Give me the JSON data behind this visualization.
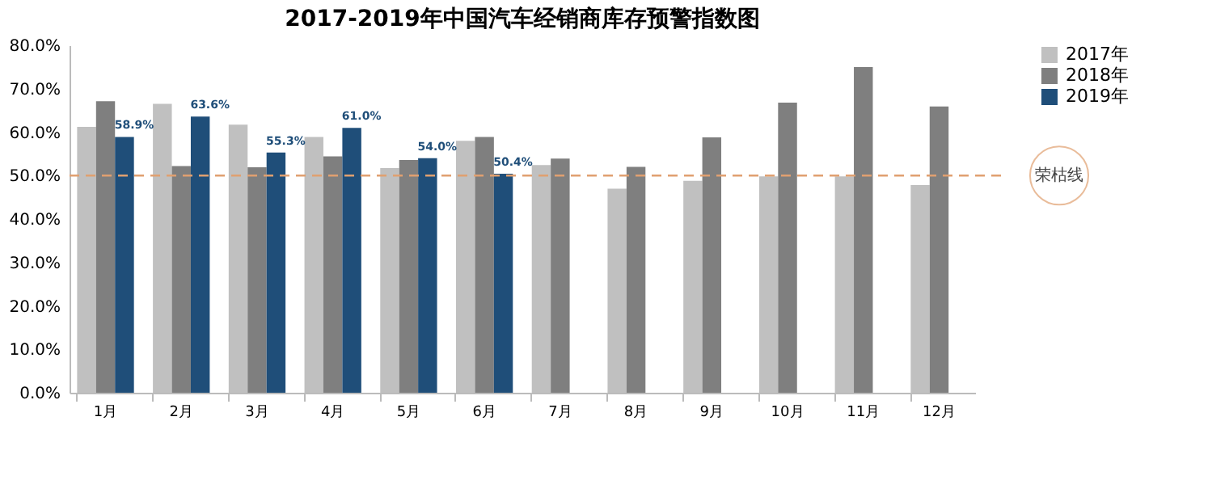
{
  "chart_data": {
    "type": "bar",
    "title": "2017-2019年中国汽车经销商库存预警指数图",
    "categories": [
      "1月",
      "2月",
      "3月",
      "4月",
      "5月",
      "6月",
      "7月",
      "8月",
      "9月",
      "10月",
      "11月",
      "12月"
    ],
    "series": [
      {
        "name": "2017年",
        "color": "#c0c0c0",
        "values": [
          61.2,
          66.5,
          61.7,
          58.9,
          51.7,
          58.0,
          52.4,
          47.0,
          48.8,
          49.8,
          49.8,
          47.8
        ]
      },
      {
        "name": "2018年",
        "color": "#7f7f7f",
        "values": [
          67.1,
          52.2,
          51.9,
          54.4,
          53.6,
          58.9,
          53.9,
          52.0,
          58.8,
          66.8,
          75.0,
          65.9
        ]
      },
      {
        "name": "2019年",
        "color": "#1f4e79",
        "values": [
          58.9,
          63.6,
          55.3,
          61.0,
          54.0,
          50.4,
          null,
          null,
          null,
          null,
          null,
          null
        ],
        "value_labels": [
          "58.9%",
          "63.6%",
          "55.3%",
          "61.0%",
          "54.0%",
          "50.4%",
          null,
          null,
          null,
          null,
          null,
          null
        ]
      }
    ],
    "ylim": [
      0,
      80
    ],
    "yticks": [
      {
        "value": 0,
        "label": "0.0%"
      },
      {
        "value": 10,
        "label": "10.0%"
      },
      {
        "value": 20,
        "label": "20.0%"
      },
      {
        "value": 30,
        "label": "30.0%"
      },
      {
        "value": 40,
        "label": "40.0%"
      },
      {
        "value": 50,
        "label": "50.0%"
      },
      {
        "value": 60,
        "label": "60.0%"
      },
      {
        "value": 70,
        "label": "70.0%"
      },
      {
        "value": 80,
        "label": "80.0%"
      }
    ],
    "ref_lines": [
      {
        "axis": "y",
        "value": 50,
        "label": "荣枯线",
        "color": "#e0a070",
        "line_style": "dashed"
      }
    ],
    "legend": "right",
    "grid": false
  }
}
